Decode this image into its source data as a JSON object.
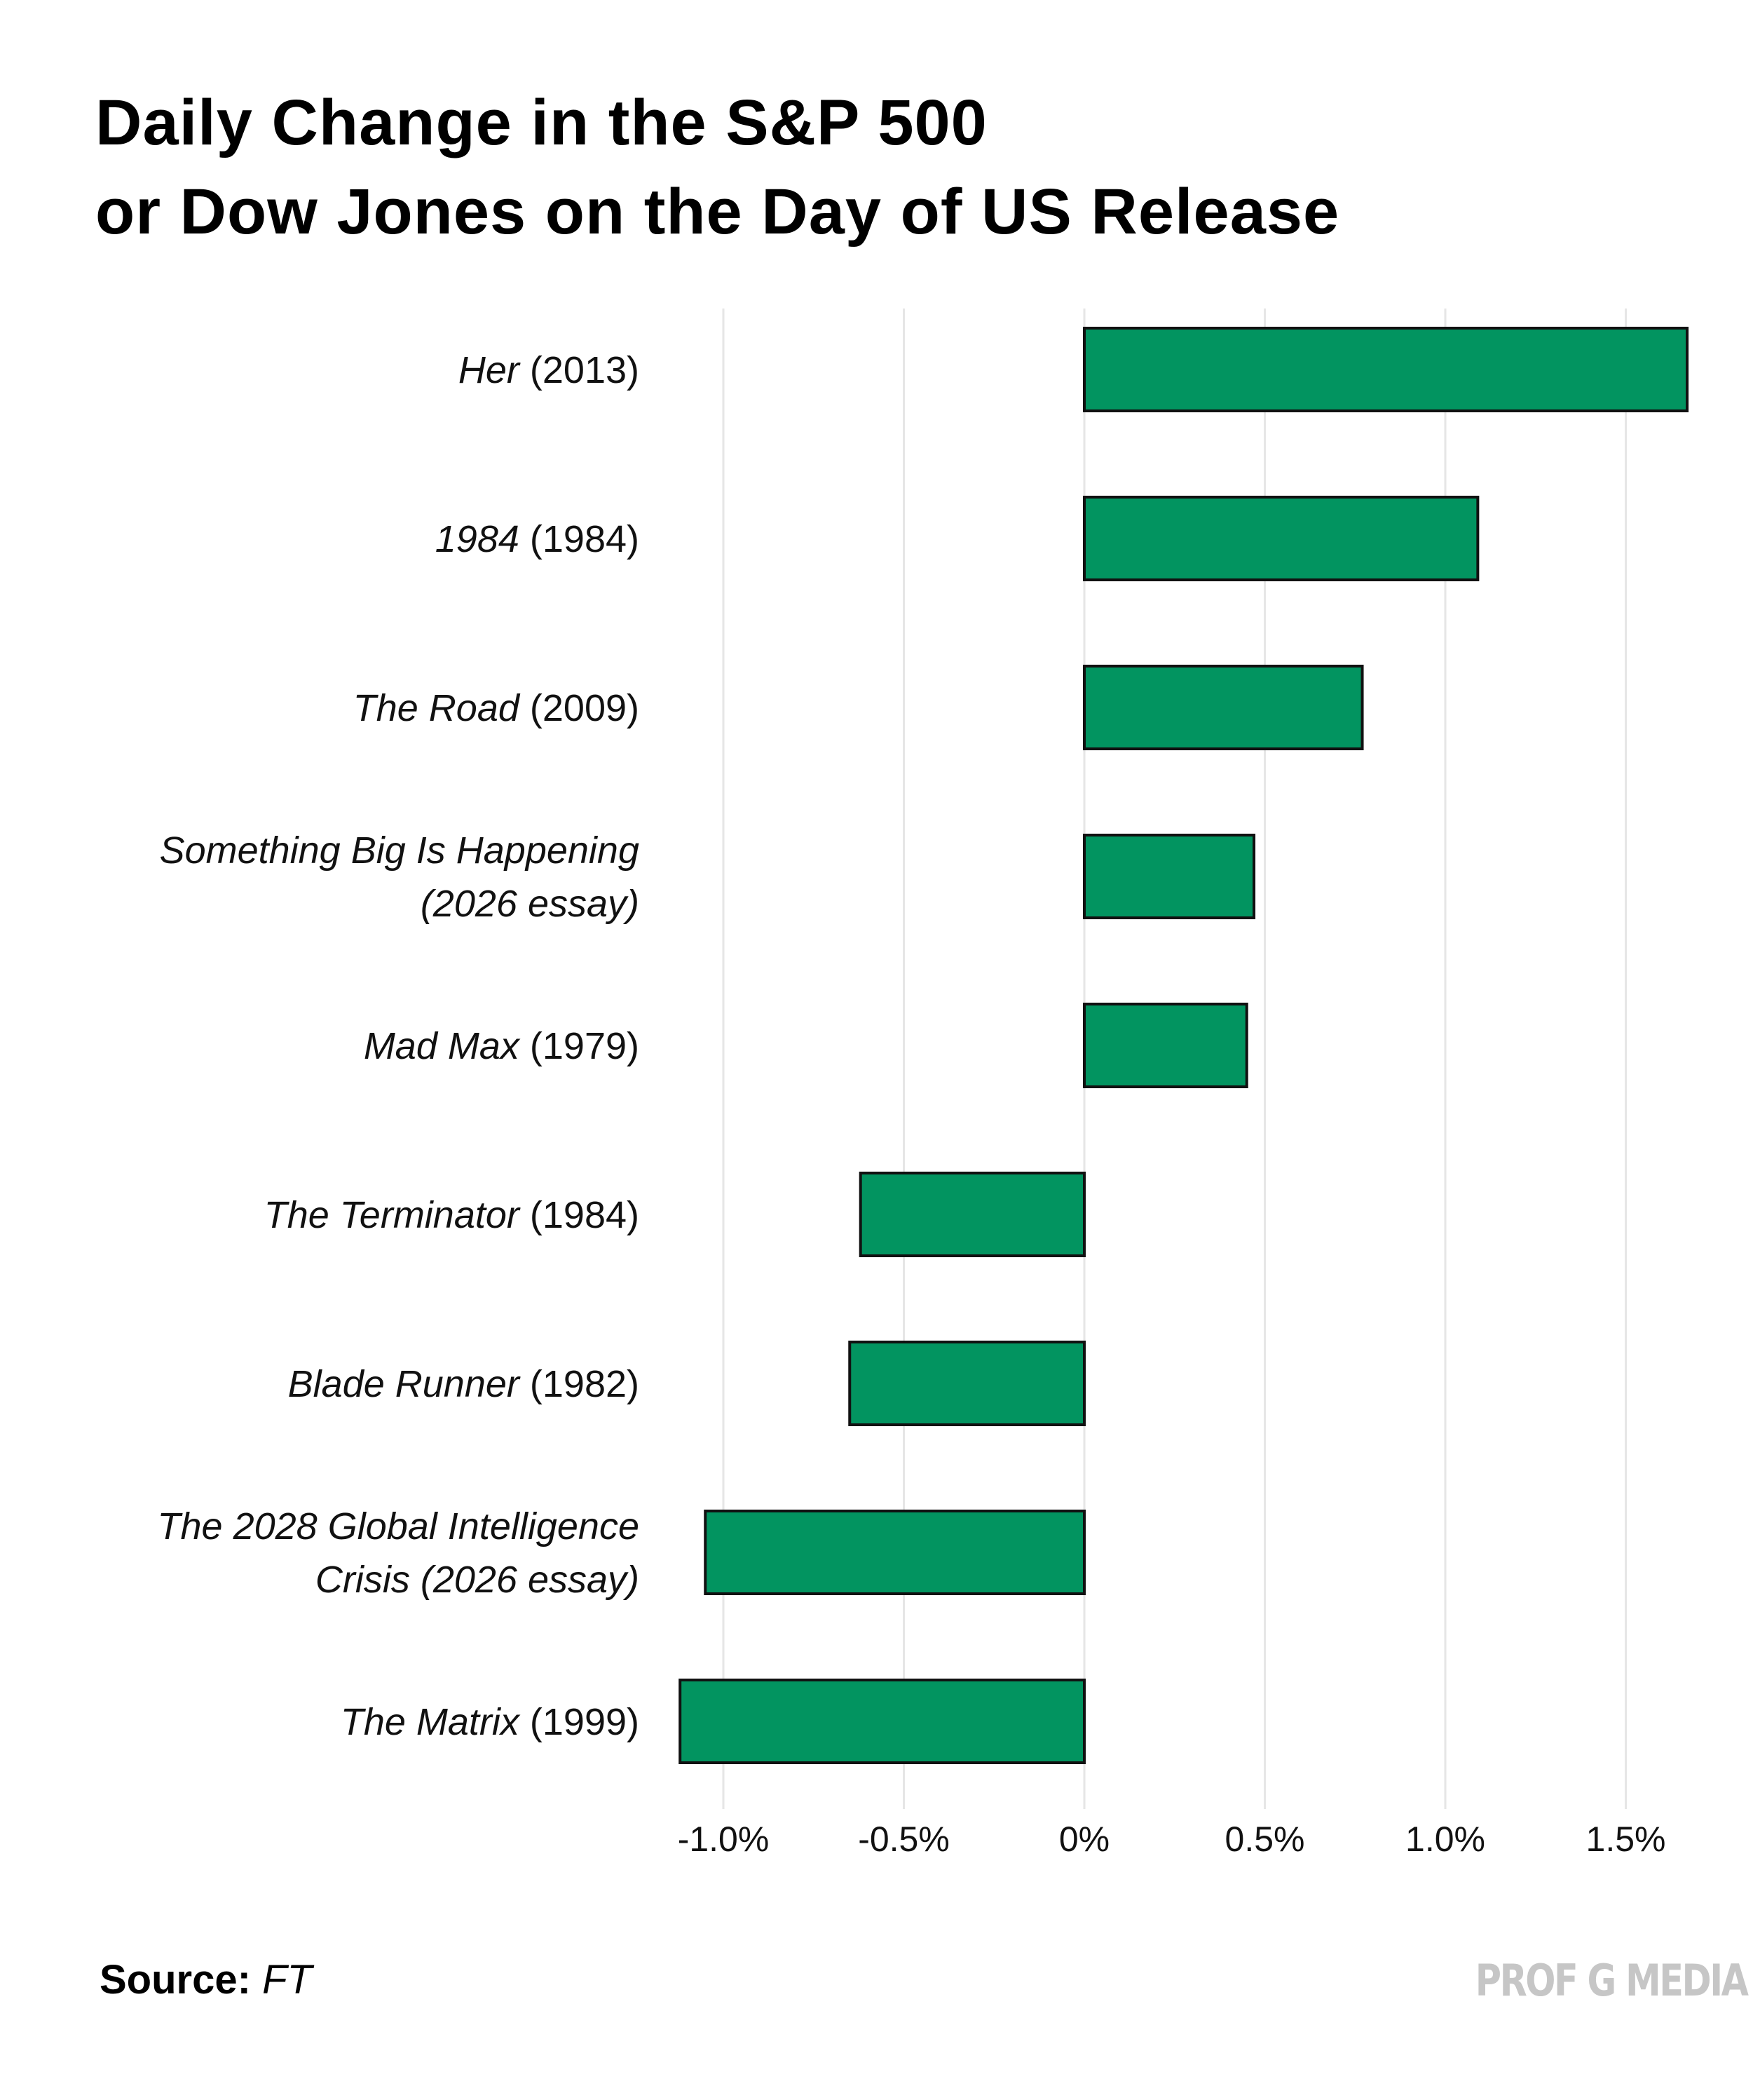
{
  "title": {
    "line1": "Daily Change in the S&P 500",
    "line2": "or Dow Jones on the Day of US Release"
  },
  "chart_data": {
    "type": "bar",
    "orientation": "horizontal",
    "title": "Daily Change in the S&P 500 or Dow Jones on the Day of US Release",
    "xlabel": "",
    "ylabel": "",
    "xlim": [
      -1.0,
      1.5
    ],
    "grid": true,
    "bar_color": "#029460",
    "bar_edge_color": "#111111",
    "gridline_color": "#e6e6e6",
    "ticks": [
      {
        "value": -1.0,
        "label": "-1.0%"
      },
      {
        "value": -0.5,
        "label": "-0.5%"
      },
      {
        "value": 0,
        "label": "0%"
      },
      {
        "value": 0.5,
        "label": "0.5%"
      },
      {
        "value": 1.0,
        "label": "1.0%"
      },
      {
        "value": 1.5,
        "label": "1.5%"
      }
    ],
    "categories": [
      {
        "lines": [
          {
            "italic": "Her",
            "plain": " (2013)"
          }
        ],
        "value": 1.67
      },
      {
        "lines": [
          {
            "italic": "1984",
            "plain": " (1984)"
          }
        ],
        "value": 1.09
      },
      {
        "lines": [
          {
            "italic": "The Road",
            "plain": " (2009)"
          }
        ],
        "value": 0.77
      },
      {
        "lines": [
          {
            "italic": "Something Big Is Happening",
            "plain": ""
          },
          {
            "italic": "(2026 essay)",
            "plain": ""
          }
        ],
        "value": 0.47
      },
      {
        "lines": [
          {
            "italic": "Mad Max",
            "plain": " (1979)"
          }
        ],
        "value": 0.45
      },
      {
        "lines": [
          {
            "italic": "The Terminator",
            "plain": " (1984)"
          }
        ],
        "value": -0.62
      },
      {
        "lines": [
          {
            "italic": "Blade Runner",
            "plain": " (1982)"
          }
        ],
        "value": -0.65
      },
      {
        "lines": [
          {
            "italic": "The 2028 Global Intelligence",
            "plain": ""
          },
          {
            "italic": "Crisis (2026 essay)",
            "plain": ""
          }
        ],
        "value": -1.05
      },
      {
        "lines": [
          {
            "italic": "The Matrix",
            "plain": " (1999)"
          }
        ],
        "value": -1.12
      }
    ]
  },
  "footer": {
    "source_label": "Source:",
    "source_value": "FT",
    "brand": "PROF G MEDIA"
  }
}
